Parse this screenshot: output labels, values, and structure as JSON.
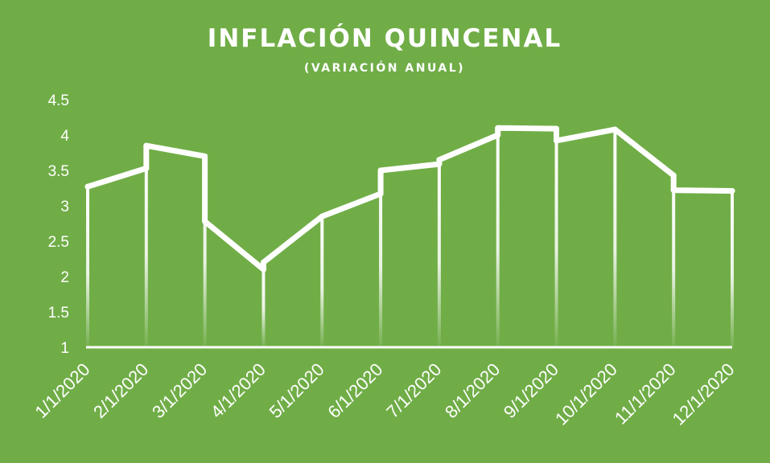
{
  "chart_data": {
    "type": "line",
    "title": "INFLACIÓN QUINCENAL",
    "subtitle": "(VARIACIÓN ANUAL)",
    "xlabel": "",
    "ylabel": "",
    "categories": [
      "1/1/2020",
      "2/1/2020",
      "3/1/2020",
      "4/1/2020",
      "5/1/2020",
      "6/1/2020",
      "7/1/2020",
      "8/1/2020",
      "9/1/2020",
      "10/1/2020",
      "11/1/2020",
      "12/1/2020"
    ],
    "y_ticks": [
      "1",
      "1.5",
      "2",
      "2.5",
      "3",
      "3.5",
      "4",
      "4.5"
    ],
    "ylim": [
      1,
      4.5
    ],
    "grid": false,
    "legend": "none",
    "series": [
      {
        "points": [
          {
            "x": "1/1/2020",
            "y": 3.27
          },
          {
            "x": "2/1/2020",
            "y": 3.53
          },
          {
            "x": "2/1/2020",
            "y": 3.85
          },
          {
            "x": "3/1/2020",
            "y": 3.7
          },
          {
            "x": "3/1/2020",
            "y": 2.78
          },
          {
            "x": "4/1/2020",
            "y": 2.1
          },
          {
            "x": "4/1/2020",
            "y": 2.2
          },
          {
            "x": "5/1/2020",
            "y": 2.85
          },
          {
            "x": "6/1/2020",
            "y": 3.17
          },
          {
            "x": "6/1/2020",
            "y": 3.5
          },
          {
            "x": "7/1/2020",
            "y": 3.59
          },
          {
            "x": "7/1/2020",
            "y": 3.65
          },
          {
            "x": "8/1/2020",
            "y": 4.0
          },
          {
            "x": "8/1/2020",
            "y": 4.1
          },
          {
            "x": "9/1/2020",
            "y": 4.09
          },
          {
            "x": "9/1/2020",
            "y": 3.92
          },
          {
            "x": "10/1/2020",
            "y": 4.08
          },
          {
            "x": "11/1/2020",
            "y": 3.43
          },
          {
            "x": "11/1/2020",
            "y": 3.22
          },
          {
            "x": "12/1/2020",
            "y": 3.21
          }
        ]
      }
    ],
    "colors": {
      "background": "#70ad47",
      "line": "#ffffff",
      "text": "#ffffff"
    }
  }
}
